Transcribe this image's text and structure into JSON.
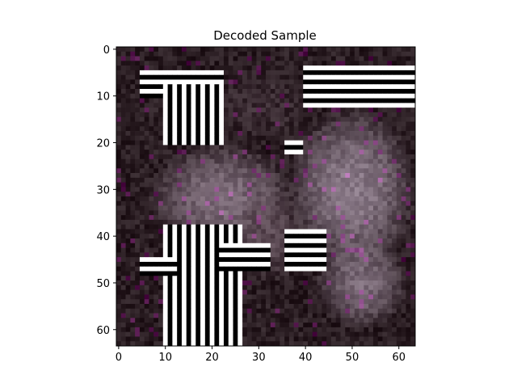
{
  "chart_data": {
    "type": "heatmap",
    "title": "Decoded Sample",
    "xlabel": "",
    "ylabel": "",
    "image_size": [
      64,
      64
    ],
    "xlim": [
      -0.5,
      63.5
    ],
    "ylim": [
      63.5,
      -0.5
    ],
    "x_ticks": [
      0,
      10,
      20,
      30,
      40,
      50,
      60
    ],
    "y_ticks": [
      0,
      10,
      20,
      30,
      40,
      50,
      60
    ],
    "x_tick_labels": [
      "0",
      "10",
      "20",
      "30",
      "40",
      "50",
      "60"
    ],
    "y_tick_labels": [
      "0",
      "10",
      "20",
      "30",
      "40",
      "50",
      "60"
    ],
    "grid": false,
    "colors": {
      "background_dark": "#2a1d22",
      "mid_grey": "#6b5a66",
      "light_grey": "#9a8a98",
      "stripe_light": "#ffffff",
      "stripe_dark": "#000000"
    },
    "regions": [
      {
        "kind": "blob",
        "cx": 22,
        "cy": 32,
        "rx": 16,
        "ry": 12,
        "color": "#7d6c79"
      },
      {
        "kind": "blob",
        "cx": 50,
        "cy": 30,
        "rx": 14,
        "ry": 18,
        "color": "#8a7a88"
      },
      {
        "kind": "blob",
        "cx": 32,
        "cy": 40,
        "rx": 8,
        "ry": 10,
        "color": "#5a4852"
      },
      {
        "kind": "blob",
        "cx": 52,
        "cy": 50,
        "rx": 10,
        "ry": 10,
        "color": "#7a6a77"
      },
      {
        "kind": "blob",
        "cx": 30,
        "cy": 12,
        "rx": 10,
        "ry": 8,
        "color": "#3b2c33"
      }
    ],
    "stripes": [
      {
        "orientation": "h",
        "x0": 5,
        "x1": 22,
        "y0": 5,
        "y1": 10,
        "period": 2
      },
      {
        "orientation": "v",
        "x0": 10,
        "x1": 22,
        "y0": 8,
        "y1": 20,
        "period": 2
      },
      {
        "orientation": "h",
        "x0": 40,
        "x1": 63,
        "y0": 4,
        "y1": 12,
        "period": 2
      },
      {
        "orientation": "v",
        "x0": 10,
        "x1": 26,
        "y0": 38,
        "y1": 63,
        "period": 2
      },
      {
        "orientation": "h",
        "x0": 22,
        "x1": 32,
        "y0": 42,
        "y1": 47,
        "period": 2
      },
      {
        "orientation": "h",
        "x0": 36,
        "x1": 44,
        "y0": 39,
        "y1": 47,
        "period": 2
      },
      {
        "orientation": "h",
        "x0": 5,
        "x1": 12,
        "y0": 45,
        "y1": 48,
        "period": 2
      },
      {
        "orientation": "h",
        "x0": 36,
        "x1": 39,
        "y0": 20,
        "y1": 22,
        "period": 2
      }
    ]
  }
}
